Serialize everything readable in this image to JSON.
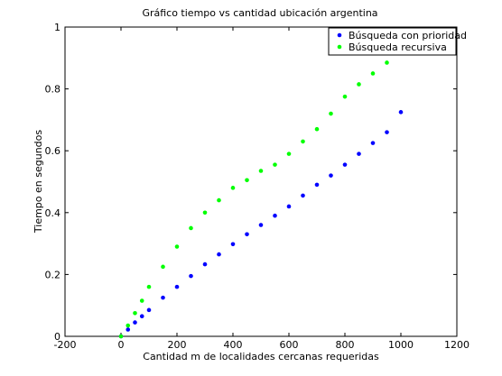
{
  "chart_data": {
    "type": "scatter",
    "title": "Gráfico tiempo vs cantidad ubicación argentina",
    "xlabel": "Cantidad m de localidades cercanas requeridas",
    "ylabel": "Tiempo en segundos",
    "xlim": [
      -200,
      1200
    ],
    "ylim": [
      0,
      1
    ],
    "xticks": [
      "-200",
      "0",
      "200",
      "400",
      "600",
      "800",
      "1000",
      "1200"
    ],
    "yticks": [
      "0",
      "0.2",
      "0.4",
      "0.6",
      "0.8",
      "1"
    ],
    "grid": false,
    "legend_position": "top-right",
    "series": [
      {
        "name": "Búsqueda con prioridad",
        "color": "#0000ff",
        "x": [
          0,
          25,
          50,
          75,
          100,
          150,
          200,
          250,
          300,
          350,
          400,
          450,
          500,
          550,
          600,
          650,
          700,
          750,
          800,
          850,
          900,
          950,
          1000
        ],
        "y": [
          0.0,
          0.022,
          0.045,
          0.065,
          0.085,
          0.125,
          0.16,
          0.195,
          0.233,
          0.265,
          0.298,
          0.33,
          0.36,
          0.39,
          0.42,
          0.455,
          0.49,
          0.52,
          0.555,
          0.59,
          0.625,
          0.66,
          0.725
        ]
      },
      {
        "name": "Búsqueda recursiva",
        "color": "#00ff00",
        "x": [
          0,
          25,
          50,
          75,
          100,
          150,
          200,
          250,
          300,
          350,
          400,
          450,
          500,
          550,
          600,
          650,
          700,
          750,
          800,
          850,
          900,
          950,
          975
        ],
        "y": [
          0.0,
          0.035,
          0.075,
          0.115,
          0.16,
          0.225,
          0.29,
          0.35,
          0.4,
          0.44,
          0.48,
          0.505,
          0.535,
          0.555,
          0.59,
          0.63,
          0.67,
          0.72,
          0.775,
          0.815,
          0.85,
          0.885,
          0.93
        ]
      }
    ]
  }
}
